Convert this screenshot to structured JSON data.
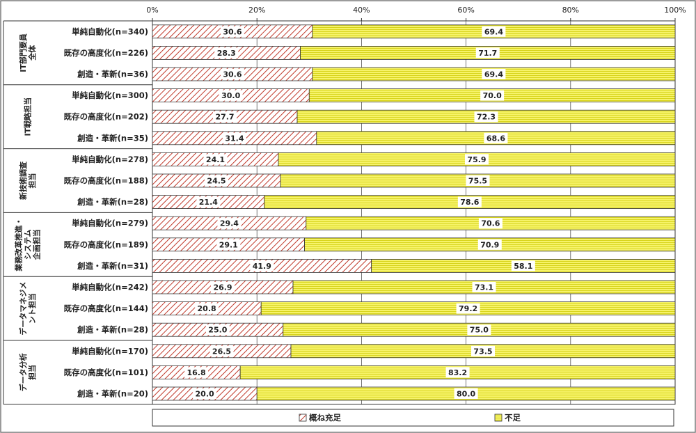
{
  "chart_data": {
    "type": "bar",
    "stacked": true,
    "orientation": "horizontal",
    "xlim": [
      0,
      100
    ],
    "x_ticks": [
      "0%",
      "20%",
      "40%",
      "60%",
      "80%",
      "100%"
    ],
    "legend_position": "bottom",
    "grid": true,
    "series": [
      {
        "name": "概ね充足",
        "color": "#c0392b",
        "pattern": "diagonal-hatch"
      },
      {
        "name": "不足",
        "color": "#f2ef3a",
        "pattern": "horizontal-lines"
      }
    ],
    "groups": [
      {
        "label": "IT部門要員全体",
        "label_lines": [
          "IT部門要員",
          "全体"
        ],
        "rows": [
          {
            "label": "単純自動化(n=340)",
            "values": [
              30.6,
              69.4
            ]
          },
          {
            "label": "既存の高度化(n=226)",
            "values": [
              28.3,
              71.7
            ]
          },
          {
            "label": "創造・革新(n=36)",
            "values": [
              30.6,
              69.4
            ]
          }
        ]
      },
      {
        "label": "IT戦略担当",
        "label_lines": [
          "IT戦略担当"
        ],
        "rows": [
          {
            "label": "単純自動化(n=300)",
            "values": [
              30.0,
              70.0
            ]
          },
          {
            "label": "既存の高度化(n=202)",
            "values": [
              27.7,
              72.3
            ]
          },
          {
            "label": "創造・革新(n=35)",
            "values": [
              31.4,
              68.6
            ]
          }
        ]
      },
      {
        "label": "新技術調査担当",
        "label_lines": [
          "新技術調査",
          "担当"
        ],
        "rows": [
          {
            "label": "単純自動化(n=278)",
            "values": [
              24.1,
              75.9
            ]
          },
          {
            "label": "既存の高度化(n=188)",
            "values": [
              24.5,
              75.5
            ]
          },
          {
            "label": "創造・革新(n=28)",
            "values": [
              21.4,
              78.6
            ]
          }
        ]
      },
      {
        "label": "業務改革推進・システム企画担当",
        "label_lines": [
          "業務改革推進・",
          "システム",
          "企画担当"
        ],
        "rows": [
          {
            "label": "単純自動化(n=279)",
            "values": [
              29.4,
              70.6
            ]
          },
          {
            "label": "既存の高度化(n=189)",
            "values": [
              29.1,
              70.9
            ]
          },
          {
            "label": "創造・革新(n=31)",
            "values": [
              41.9,
              58.1
            ]
          }
        ]
      },
      {
        "label": "データマネジメント担当",
        "label_lines": [
          "データマネジメ",
          "ント担当"
        ],
        "rows": [
          {
            "label": "単純自動化(n=242)",
            "values": [
              26.9,
              73.1
            ]
          },
          {
            "label": "既存の高度化(n=144)",
            "values": [
              20.8,
              79.2
            ]
          },
          {
            "label": "創造・革新(n=28)",
            "values": [
              25.0,
              75.0
            ]
          }
        ]
      },
      {
        "label": "データ分析担当",
        "label_lines": [
          "データ分析",
          "担当"
        ],
        "rows": [
          {
            "label": "単純自動化(n=170)",
            "values": [
              26.5,
              73.5
            ]
          },
          {
            "label": "既存の高度化(n=101)",
            "values": [
              16.8,
              83.2
            ]
          },
          {
            "label": "創造・革新(n=20)",
            "values": [
              20.0,
              80.0
            ]
          }
        ]
      }
    ]
  }
}
